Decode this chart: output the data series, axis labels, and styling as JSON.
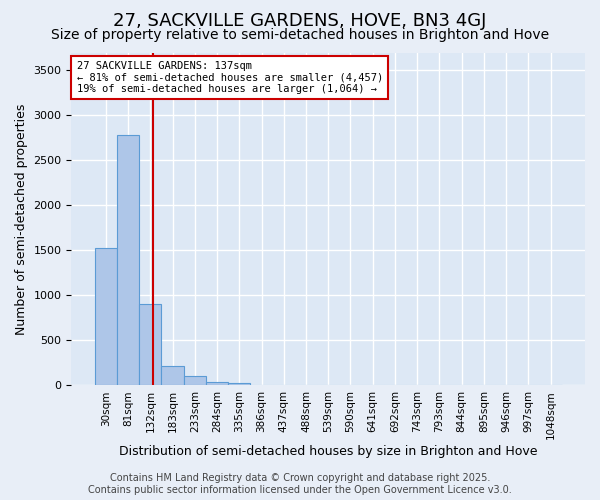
{
  "title": "27, SACKVILLE GARDENS, HOVE, BN3 4GJ",
  "subtitle": "Size of property relative to semi-detached houses in Brighton and Hove",
  "xlabel": "Distribution of semi-detached houses by size in Brighton and Hove",
  "ylabel": "Number of semi-detached properties",
  "bin_labels": [
    "30sqm",
    "81sqm",
    "132sqm",
    "183sqm",
    "233sqm",
    "284sqm",
    "335sqm",
    "386sqm",
    "437sqm",
    "488sqm",
    "539sqm",
    "590sqm",
    "641sqm",
    "692sqm",
    "743sqm",
    "793sqm",
    "844sqm",
    "895sqm",
    "946sqm",
    "997sqm",
    "1048sqm"
  ],
  "bar_values": [
    1530,
    2780,
    900,
    215,
    105,
    40,
    25,
    0,
    0,
    0,
    0,
    0,
    0,
    0,
    0,
    0,
    0,
    0,
    0,
    0,
    0
  ],
  "bar_color": "#aec6e8",
  "bar_edge_color": "#5b9bd5",
  "vline_color": "#cc0000",
  "annotation_title": "27 SACKVILLE GARDENS: 137sqm",
  "annotation_line1": "← 81% of semi-detached houses are smaller (4,457)",
  "annotation_line2": "19% of semi-detached houses are larger (1,064) →",
  "annotation_box_color": "#ffffff",
  "annotation_box_edge": "#cc0000",
  "ylim": [
    0,
    3700
  ],
  "yticks": [
    0,
    500,
    1000,
    1500,
    2000,
    2500,
    3000,
    3500
  ],
  "background_color": "#dde8f5",
  "grid_color": "#ffffff",
  "footer_line1": "Contains HM Land Registry data © Crown copyright and database right 2025.",
  "footer_line2": "Contains public sector information licensed under the Open Government Licence v3.0.",
  "title_fontsize": 13,
  "subtitle_fontsize": 10,
  "label_fontsize": 9,
  "tick_fontsize": 8,
  "footer_fontsize": 7
}
